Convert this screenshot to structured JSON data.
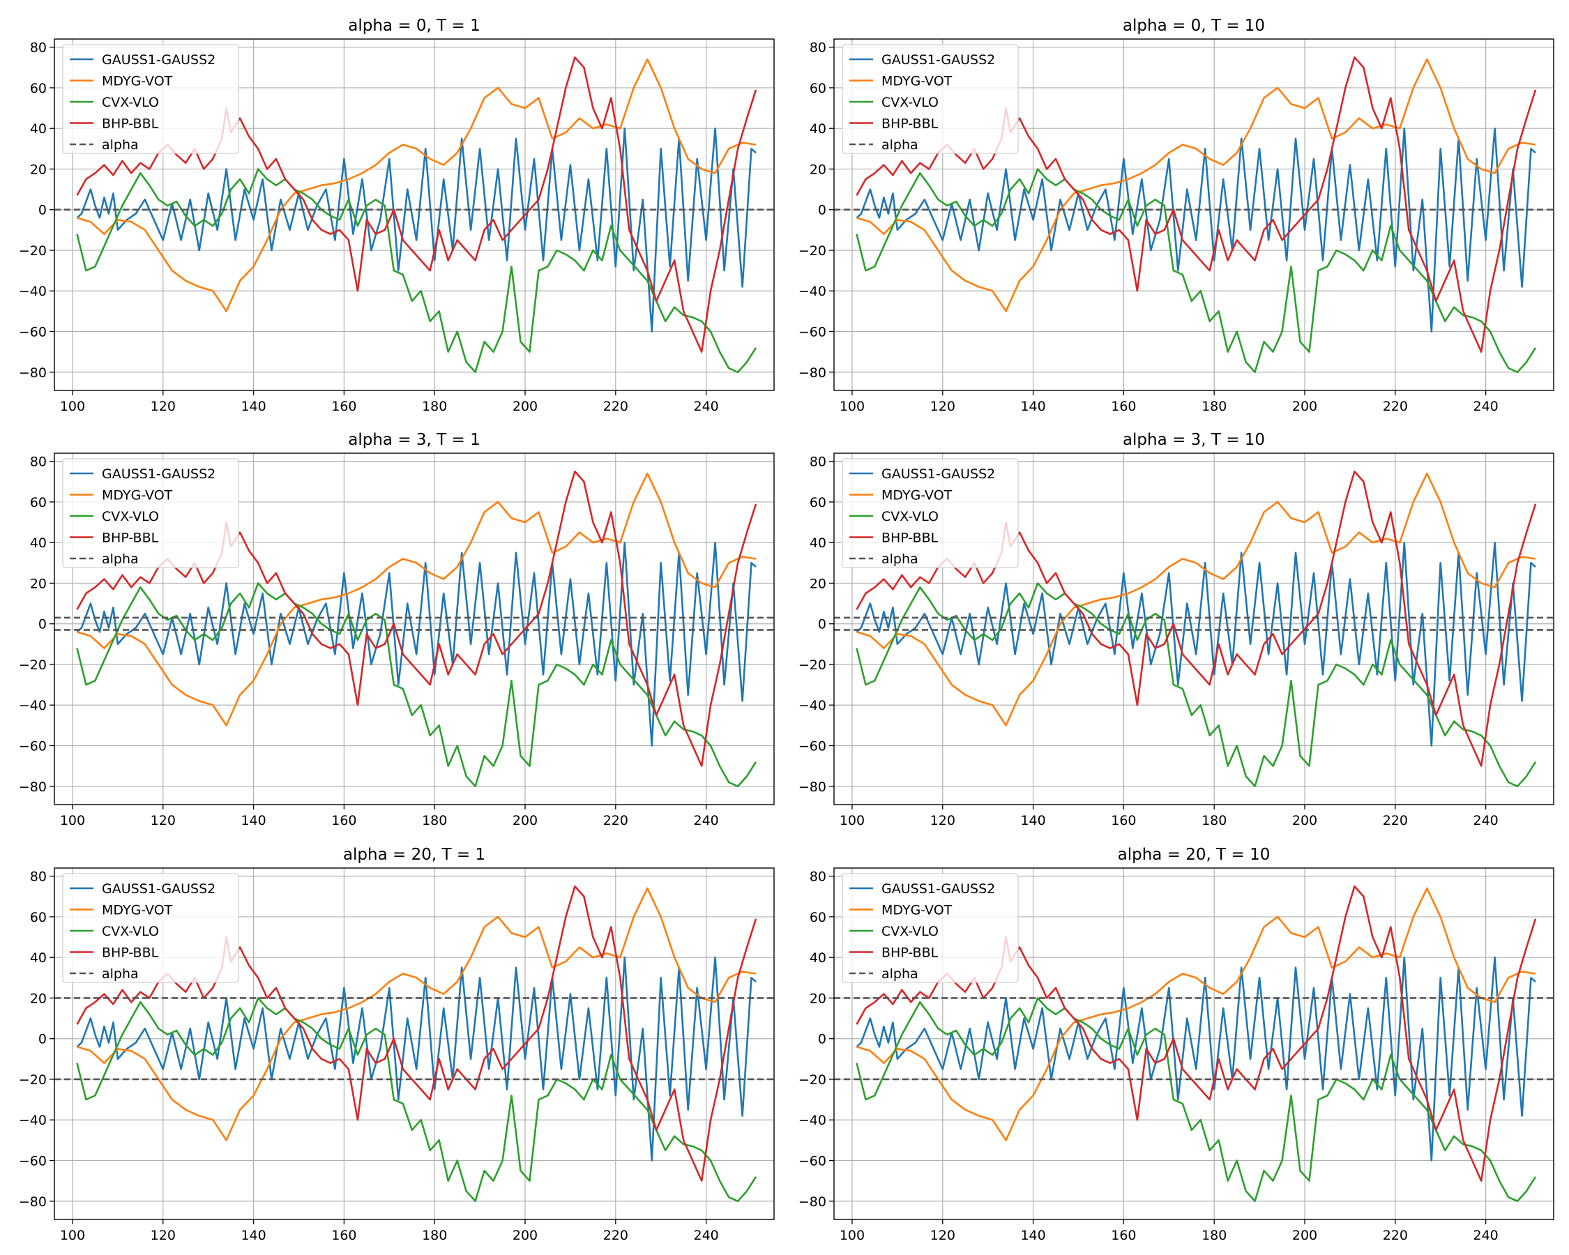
{
  "figure": {
    "colors": {
      "grid": "#b0b0b0",
      "frame": "#000000",
      "legend_border": "#d0d0d0",
      "alpha_line": "#555555"
    }
  },
  "chart_data": [
    {
      "type": "line",
      "title": "alpha = 0, T = 1",
      "alpha": 0
    },
    {
      "type": "line",
      "title": "alpha = 0, T = 10",
      "alpha": 0
    },
    {
      "type": "line",
      "title": "alpha = 3, T = 1",
      "alpha": 3
    },
    {
      "type": "line",
      "title": "alpha = 3, T = 10",
      "alpha": 3
    },
    {
      "type": "line",
      "title": "alpha = 20, T = 1",
      "alpha": 20
    },
    {
      "type": "line",
      "title": "alpha = 20, T = 10",
      "alpha": 20
    }
  ],
  "shared": {
    "xlim": [
      96,
      255
    ],
    "ylim": [
      -89,
      84
    ],
    "x_ticks": [
      100,
      120,
      140,
      160,
      180,
      200,
      220,
      240
    ],
    "y_ticks": [
      80,
      60,
      40,
      20,
      0,
      -20,
      -40,
      -60,
      -80
    ],
    "y_tick_labels": [
      "80",
      "60",
      "40",
      "20",
      "0",
      "−20",
      "−40",
      "−60",
      "−80"
    ],
    "grid": true,
    "legend": {
      "placement": "top-left",
      "entries": [
        "GAUSS1-GAUSS2",
        "MDYG-VOT",
        "CVX-VLO",
        "BHP-BBL",
        "alpha"
      ]
    },
    "series": [
      {
        "name": "GAUSS1-GAUSS2",
        "color": "#1f77b4",
        "x": [
          101,
          102,
          103,
          104,
          105,
          106,
          107,
          108,
          109,
          110,
          112,
          114,
          116,
          118,
          120,
          122,
          124,
          126,
          128,
          130,
          132,
          134,
          136,
          138,
          140,
          142,
          144,
          146,
          148,
          150,
          152,
          154,
          156,
          158,
          160,
          162,
          164,
          166,
          168,
          170,
          172,
          174,
          176,
          178,
          180,
          182,
          184,
          186,
          188,
          190,
          192,
          194,
          196,
          198,
          200,
          202,
          204,
          206,
          208,
          210,
          212,
          214,
          216,
          218,
          220,
          222,
          224,
          226,
          228,
          230,
          232,
          234,
          236,
          238,
          240,
          242,
          244,
          246,
          248,
          250,
          251
        ],
        "values": [
          -4,
          -2,
          4,
          10,
          2,
          -4,
          6,
          -2,
          8,
          -10,
          -5,
          -2,
          5,
          -5,
          -15,
          3,
          -15,
          5,
          -20,
          8,
          -10,
          20,
          -15,
          10,
          -5,
          15,
          -20,
          5,
          -10,
          8,
          -10,
          2,
          10,
          -15,
          25,
          -12,
          15,
          -20,
          -5,
          25,
          -30,
          10,
          -15,
          30,
          -25,
          15,
          -20,
          35,
          -10,
          30,
          -15,
          20,
          -25,
          35,
          -10,
          25,
          -25,
          30,
          -15,
          22,
          -20,
          15,
          -25,
          30,
          -28,
          40,
          -30,
          5,
          -60,
          30,
          -28,
          35,
          -35,
          25,
          -15,
          40,
          -30,
          20,
          -38,
          30,
          28
        ]
      },
      {
        "name": "MDYG-VOT",
        "color": "#ff7f0e",
        "x": [
          101,
          104,
          107,
          110,
          113,
          116,
          119,
          122,
          125,
          128,
          131,
          134,
          137,
          140,
          143,
          146,
          149,
          152,
          155,
          158,
          161,
          164,
          167,
          170,
          173,
          176,
          179,
          182,
          185,
          188,
          191,
          194,
          197,
          200,
          203,
          206,
          209,
          212,
          215,
          218,
          221,
          224,
          227,
          230,
          233,
          236,
          239,
          242,
          245,
          248,
          251
        ],
        "values": [
          -4,
          -6,
          -12,
          -5,
          -6,
          -10,
          -20,
          -30,
          -35,
          -38,
          -40,
          -50,
          -35,
          -28,
          -15,
          0,
          8,
          10,
          12,
          13,
          15,
          18,
          22,
          28,
          32,
          30,
          25,
          22,
          28,
          40,
          55,
          60,
          52,
          50,
          55,
          35,
          38,
          45,
          40,
          42,
          40,
          60,
          74,
          60,
          40,
          25,
          20,
          18,
          30,
          33,
          32
        ]
      },
      {
        "name": "CVX-VLO",
        "color": "#2ca02c",
        "x": [
          101,
          103,
          105,
          107,
          109,
          111,
          113,
          115,
          117,
          119,
          121,
          123,
          125,
          127,
          129,
          131,
          133,
          135,
          137,
          139,
          141,
          143,
          145,
          147,
          149,
          151,
          153,
          155,
          157,
          159,
          161,
          163,
          165,
          167,
          169,
          171,
          173,
          175,
          177,
          179,
          181,
          183,
          185,
          187,
          189,
          191,
          193,
          195,
          197,
          199,
          201,
          203,
          205,
          207,
          209,
          211,
          213,
          215,
          217,
          219,
          221,
          223,
          225,
          227,
          229,
          231,
          233,
          235,
          237,
          239,
          241,
          243,
          245,
          247,
          249,
          251
        ],
        "values": [
          -12,
          -30,
          -28,
          -18,
          -8,
          2,
          10,
          18,
          12,
          5,
          2,
          4,
          -3,
          -8,
          -5,
          -8,
          -2,
          10,
          15,
          8,
          20,
          15,
          12,
          15,
          10,
          8,
          5,
          0,
          -3,
          -5,
          5,
          -8,
          2,
          5,
          2,
          -30,
          -32,
          -45,
          -40,
          -55,
          -50,
          -70,
          -60,
          -75,
          -80,
          -65,
          -70,
          -60,
          -28,
          -65,
          -70,
          -30,
          -28,
          -20,
          -22,
          -25,
          -30,
          -20,
          -25,
          -8,
          -20,
          -25,
          -30,
          -35,
          -45,
          -55,
          -48,
          -52,
          -53,
          -55,
          -60,
          -70,
          -78,
          -80,
          -75,
          -68
        ]
      },
      {
        "name": "BHP-BBL",
        "color": "#d62728",
        "x": [
          101,
          103,
          105,
          107,
          109,
          111,
          113,
          115,
          117,
          119,
          121,
          123,
          125,
          127,
          129,
          131,
          133,
          134,
          135,
          137,
          139,
          141,
          143,
          145,
          147,
          149,
          151,
          153,
          155,
          157,
          159,
          161,
          163,
          165,
          167,
          169,
          171,
          173,
          175,
          177,
          179,
          181,
          183,
          185,
          187,
          189,
          191,
          193,
          195,
          197,
          199,
          201,
          203,
          205,
          207,
          209,
          211,
          213,
          215,
          217,
          219,
          221,
          223,
          225,
          227,
          229,
          231,
          233,
          235,
          237,
          239,
          241,
          243,
          245,
          247,
          249,
          251
        ],
        "values": [
          7,
          15,
          18,
          22,
          17,
          24,
          18,
          23,
          20,
          28,
          32,
          27,
          23,
          30,
          20,
          25,
          35,
          50,
          38,
          45,
          36,
          30,
          20,
          25,
          15,
          10,
          5,
          -5,
          -10,
          -12,
          -10,
          -15,
          -40,
          -5,
          -12,
          -10,
          0,
          -15,
          -20,
          -25,
          -30,
          -10,
          -25,
          -15,
          -20,
          -25,
          -10,
          -5,
          -15,
          -10,
          -5,
          0,
          5,
          20,
          40,
          60,
          75,
          70,
          50,
          40,
          55,
          30,
          -10,
          -20,
          -30,
          -45,
          -35,
          -25,
          -50,
          -60,
          -70,
          -40,
          -20,
          5,
          30,
          45,
          59
        ]
      }
    ]
  }
}
